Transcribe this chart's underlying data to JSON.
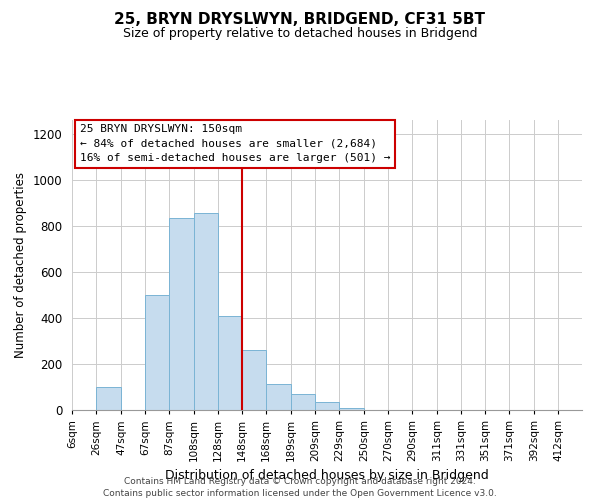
{
  "title": "25, BRYN DRYSLWYN, BRIDGEND, CF31 5BT",
  "subtitle": "Size of property relative to detached houses in Bridgend",
  "xlabel": "Distribution of detached houses by size in Bridgend",
  "ylabel": "Number of detached properties",
  "bar_left_edges": [
    6,
    26,
    47,
    67,
    87,
    108,
    128,
    148,
    168,
    189,
    209,
    229,
    250,
    270,
    290,
    311,
    331,
    351,
    371,
    392
  ],
  "bar_heights": [
    0,
    100,
    0,
    500,
    835,
    855,
    410,
    260,
    115,
    70,
    35,
    10,
    0,
    0,
    0,
    0,
    0,
    0,
    0,
    0
  ],
  "bar_widths": [
    20,
    21,
    20,
    20,
    21,
    20,
    20,
    20,
    21,
    20,
    20,
    21,
    20,
    20,
    21,
    20,
    20,
    20,
    21,
    20
  ],
  "bar_color": "#c6dcee",
  "bar_edgecolor": "#7ab4d4",
  "vline_x": 148,
  "vline_color": "#cc0000",
  "annotation_lines": [
    "25 BRYN DRYSLWYN: 150sqm",
    "← 84% of detached houses are smaller (2,684)",
    "16% of semi-detached houses are larger (501) →"
  ],
  "tick_labels": [
    "6sqm",
    "26sqm",
    "47sqm",
    "67sqm",
    "87sqm",
    "108sqm",
    "128sqm",
    "148sqm",
    "168sqm",
    "189sqm",
    "209sqm",
    "229sqm",
    "250sqm",
    "270sqm",
    "290sqm",
    "311sqm",
    "331sqm",
    "351sqm",
    "371sqm",
    "392sqm",
    "412sqm"
  ],
  "tick_positions": [
    6,
    26,
    47,
    67,
    87,
    108,
    128,
    148,
    168,
    189,
    209,
    229,
    250,
    270,
    290,
    311,
    331,
    351,
    371,
    392,
    412
  ],
  "xlim": [
    6,
    432
  ],
  "ylim": [
    0,
    1260
  ],
  "yticks": [
    0,
    200,
    400,
    600,
    800,
    1000,
    1200
  ],
  "footnote1": "Contains HM Land Registry data © Crown copyright and database right 2024.",
  "footnote2": "Contains public sector information licensed under the Open Government Licence v3.0.",
  "background_color": "#ffffff",
  "grid_color": "#cccccc"
}
